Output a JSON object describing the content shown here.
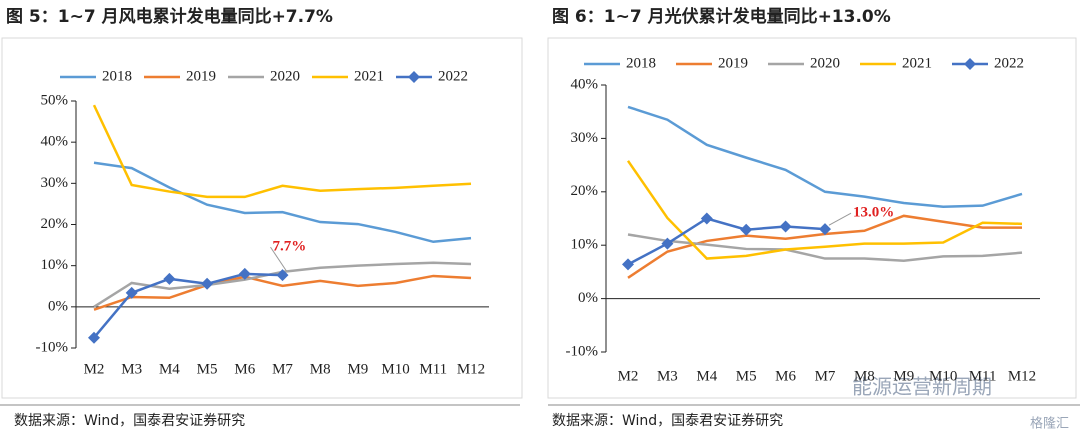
{
  "chart_data": [
    {
      "type": "line",
      "title": "图 5：1~7 月风电累计发电量同比+7.7%",
      "source": "数据来源：Wind，国泰君安证券研究",
      "categories": [
        "M2",
        "M3",
        "M4",
        "M5",
        "M6",
        "M7",
        "M8",
        "M9",
        "M10",
        "M11",
        "M12"
      ],
      "ylim": [
        -10,
        50
      ],
      "yticks": [
        {
          "value": -10,
          "label": "-10%"
        },
        {
          "value": 0,
          "label": "0%"
        },
        {
          "value": 10,
          "label": "10%"
        },
        {
          "value": 20,
          "label": "20%"
        },
        {
          "value": 30,
          "label": "30%"
        },
        {
          "value": 40,
          "label": "40%"
        },
        {
          "value": 50,
          "label": "50%"
        }
      ],
      "grid": false,
      "legend": "top",
      "series": [
        {
          "name": "2018",
          "color": "#5b9bd5",
          "values": [
            35.0,
            33.7,
            29.0,
            24.8,
            22.8,
            23.0,
            20.6,
            20.1,
            18.2,
            15.8,
            16.7
          ]
        },
        {
          "name": "2019",
          "color": "#ed7d31",
          "values": [
            -0.7,
            2.4,
            2.2,
            5.3,
            7.3,
            5.1,
            6.3,
            5.1,
            5.8,
            7.5,
            7.0
          ]
        },
        {
          "name": "2020",
          "color": "#a5a5a5",
          "values": [
            0,
            5.8,
            4.4,
            5.3,
            6.6,
            8.5,
            9.5,
            10.0,
            10.4,
            10.7,
            10.4
          ]
        },
        {
          "name": "2021",
          "color": "#ffc000",
          "values": [
            49.0,
            29.6,
            28.0,
            26.7,
            26.7,
            29.4,
            28.2,
            28.6,
            28.9,
            29.4,
            29.9
          ]
        },
        {
          "name": "2022",
          "color": "#4472c4",
          "marker": "diamond",
          "values": [
            -7.5,
            3.4,
            6.8,
            5.6,
            8.0,
            7.7,
            null,
            null,
            null,
            null,
            null
          ]
        }
      ],
      "annotation": {
        "text": "7.7%",
        "value": 7.7,
        "color": "#e02020"
      }
    },
    {
      "type": "line",
      "title": "图 6：1~7 月光伏累计发电量同比+13.0%",
      "source": "数据来源：Wind，国泰君安证券研究",
      "categories": [
        "M2",
        "M3",
        "M4",
        "M5",
        "M6",
        "M7",
        "M8",
        "M9",
        "M10",
        "M11",
        "M12"
      ],
      "ylim": [
        -10,
        40
      ],
      "yticks": [
        {
          "value": -10,
          "label": "-10%"
        },
        {
          "value": 0,
          "label": "0%"
        },
        {
          "value": 10,
          "label": "10%"
        },
        {
          "value": 20,
          "label": "20%"
        },
        {
          "value": 30,
          "label": "30%"
        },
        {
          "value": 40,
          "label": "40%"
        }
      ],
      "grid": false,
      "legend": "top",
      "series": [
        {
          "name": "2018",
          "color": "#5b9bd5",
          "values": [
            35.9,
            33.5,
            28.8,
            26.4,
            24.1,
            20.0,
            19.1,
            17.9,
            17.2,
            17.4,
            19.6
          ]
        },
        {
          "name": "2019",
          "color": "#ed7d31",
          "values": [
            3.9,
            8.8,
            10.8,
            11.8,
            11.2,
            12.1,
            12.7,
            15.5,
            14.4,
            13.3,
            13.3
          ]
        },
        {
          "name": "2020",
          "color": "#a5a5a5",
          "values": [
            12.0,
            10.8,
            10.1,
            9.3,
            9.2,
            7.5,
            7.5,
            7.1,
            7.9,
            8.0,
            8.6
          ]
        },
        {
          "name": "2021",
          "color": "#ffc000",
          "values": [
            25.8,
            15.1,
            7.5,
            8.0,
            9.2,
            9.7,
            10.3,
            10.3,
            10.5,
            14.2,
            14.0
          ]
        },
        {
          "name": "2022",
          "color": "#4472c4",
          "marker": "diamond",
          "values": [
            6.4,
            10.3,
            15.0,
            12.9,
            13.5,
            13.0,
            null,
            null,
            null,
            null,
            null
          ]
        }
      ],
      "annotation": {
        "text": "13.0%",
        "value": 13.0,
        "color": "#e02020"
      }
    }
  ],
  "watermark": {
    "channel": "能源运营新周期",
    "brand": "格隆汇"
  }
}
